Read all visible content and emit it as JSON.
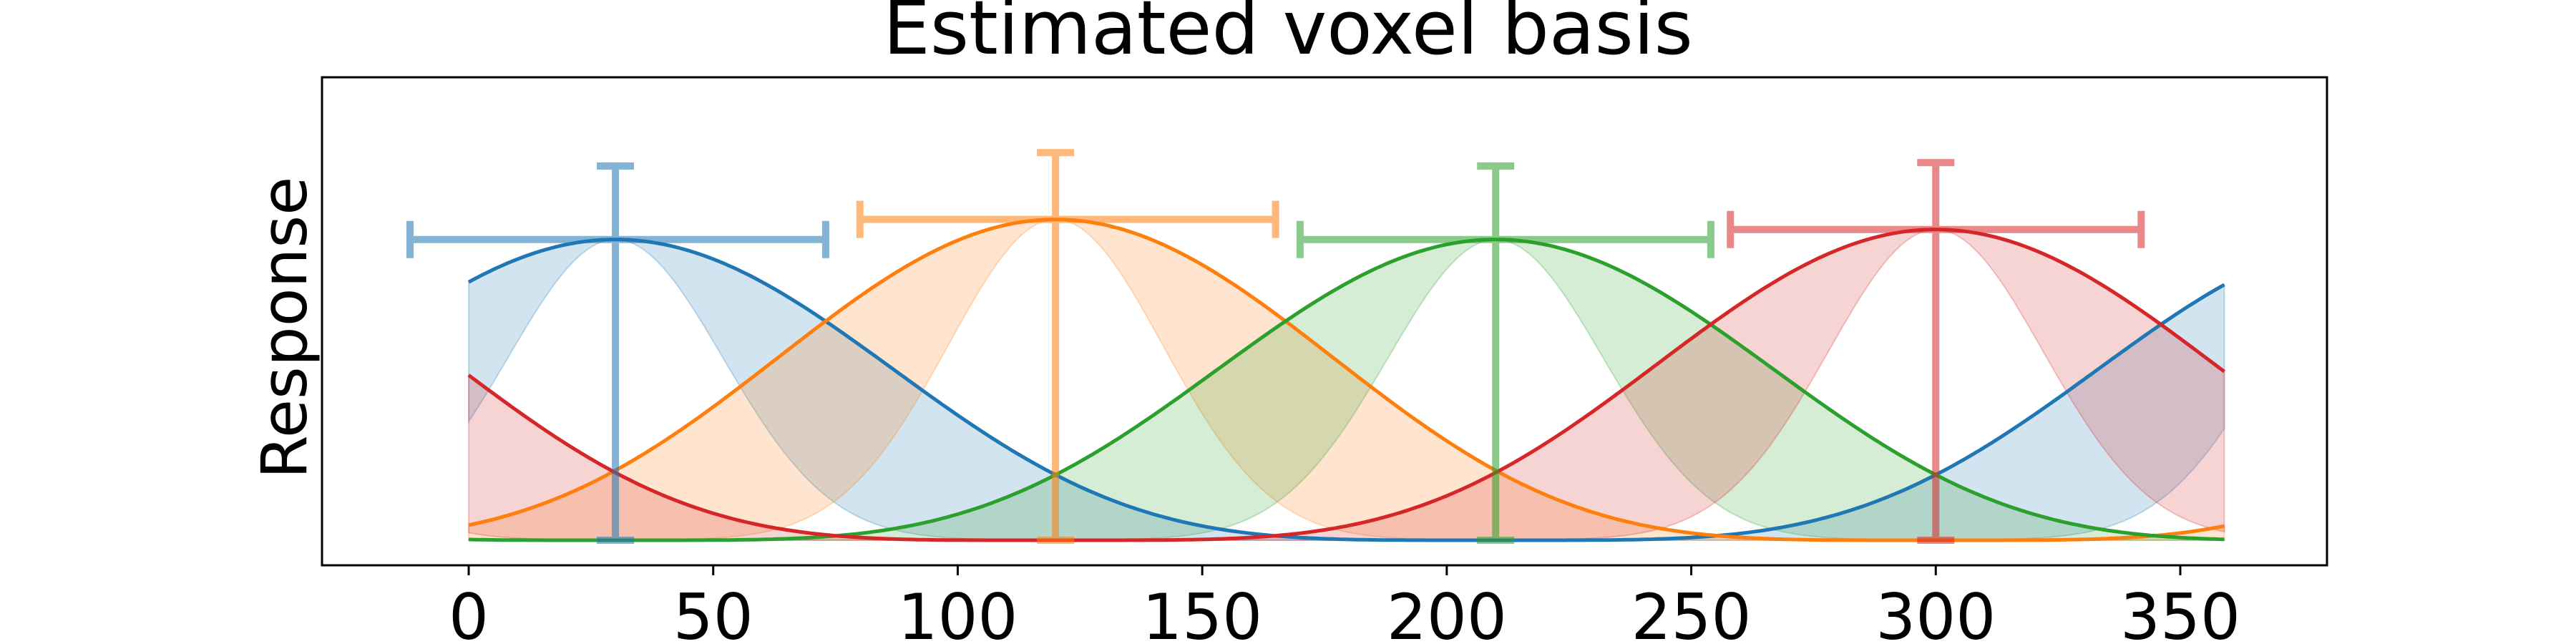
{
  "chart_data": {
    "type": "line",
    "title": "Estimated voxel basis",
    "xlabel": "",
    "ylabel": "Response",
    "xlim": [
      -30,
      380
    ],
    "ylim": [
      0.0,
      1.0
    ],
    "x_ticks": [
      0,
      50,
      100,
      150,
      200,
      250,
      300,
      350
    ],
    "grid": false,
    "legend": "none",
    "x_range": [
      0,
      359
    ],
    "series": [
      {
        "center": 30,
        "amplitude": 0.9,
        "color": "#1f77b4",
        "band_upper_width": 44,
        "band_lower_width": 130,
        "error_x": [
          -12,
          73
        ],
        "error_y": [
          0.0,
          1.12
        ]
      },
      {
        "center": 120,
        "amplitude": 0.96,
        "color": "#ff7f0e",
        "band_upper_width": 44,
        "band_lower_width": 130,
        "error_x": [
          80,
          165
        ],
        "error_y": [
          0.0,
          1.16
        ]
      },
      {
        "center": 210,
        "amplitude": 0.9,
        "color": "#2ca02c",
        "band_upper_width": 44,
        "band_lower_width": 130,
        "error_x": [
          170,
          254
        ],
        "error_y": [
          0.0,
          1.12
        ]
      },
      {
        "center": 300,
        "amplitude": 0.93,
        "color": "#d62728",
        "band_upper_width": 44,
        "band_lower_width": 130,
        "error_x": [
          258,
          342
        ],
        "error_y": [
          0.0,
          1.13
        ]
      }
    ]
  }
}
